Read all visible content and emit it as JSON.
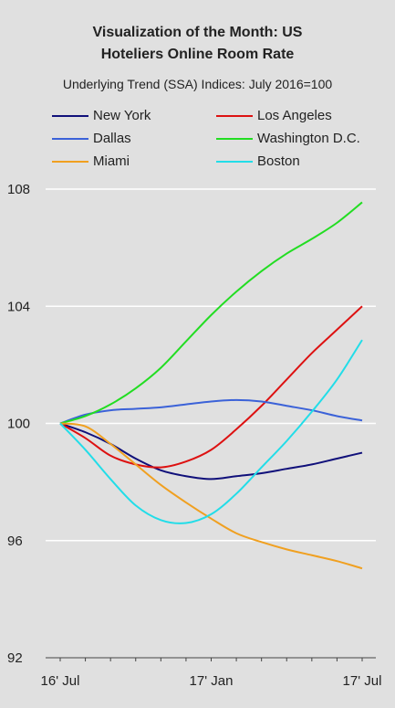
{
  "chart_data": {
    "type": "line",
    "title_line1": "Visualization of the Month: US",
    "title_line2": "Hoteliers Online Room Rate",
    "subtitle": "Underlying Trend (SSA) Indices: July 2016=100",
    "x_ticks": [
      "16' Jul",
      "17' Jan",
      "17' Jul"
    ],
    "x": [
      "2016-07",
      "2016-08",
      "2016-09",
      "2016-10",
      "2016-11",
      "2016-12",
      "2017-01",
      "2017-02",
      "2017-03",
      "2017-04",
      "2017-05",
      "2017-06",
      "2017-07"
    ],
    "ylim": [
      92,
      108
    ],
    "y_ticks": [
      92,
      96,
      100,
      104,
      108
    ],
    "grid": true,
    "legend_position": "top",
    "series": [
      {
        "name": "New York",
        "color": "#10107a",
        "values": [
          100,
          99.7,
          99.3,
          98.8,
          98.4,
          98.2,
          98.1,
          98.2,
          98.3,
          98.45,
          98.6,
          98.8,
          99.0
        ]
      },
      {
        "name": "Los Angeles",
        "color": "#dd1111",
        "values": [
          100,
          99.5,
          98.9,
          98.6,
          98.5,
          98.7,
          99.1,
          99.8,
          100.6,
          101.5,
          102.4,
          103.2,
          104.0
        ]
      },
      {
        "name": "Dallas",
        "color": "#3b62d8",
        "values": [
          100,
          100.3,
          100.45,
          100.5,
          100.55,
          100.65,
          100.75,
          100.8,
          100.75,
          100.6,
          100.45,
          100.25,
          100.1
        ]
      },
      {
        "name": "Washington D.C.",
        "color": "#22dd22",
        "values": [
          100,
          100.25,
          100.65,
          101.2,
          101.9,
          102.8,
          103.7,
          104.5,
          105.2,
          105.8,
          106.3,
          106.85,
          107.55
        ]
      },
      {
        "name": "Miami",
        "color": "#f0a020",
        "values": [
          100,
          99.9,
          99.3,
          98.6,
          97.9,
          97.3,
          96.75,
          96.25,
          95.95,
          95.7,
          95.5,
          95.3,
          95.05
        ]
      },
      {
        "name": "Boston",
        "color": "#22dde8",
        "values": [
          100,
          99.1,
          98.1,
          97.2,
          96.7,
          96.6,
          96.9,
          97.6,
          98.5,
          99.4,
          100.4,
          101.5,
          102.85
        ]
      }
    ]
  }
}
